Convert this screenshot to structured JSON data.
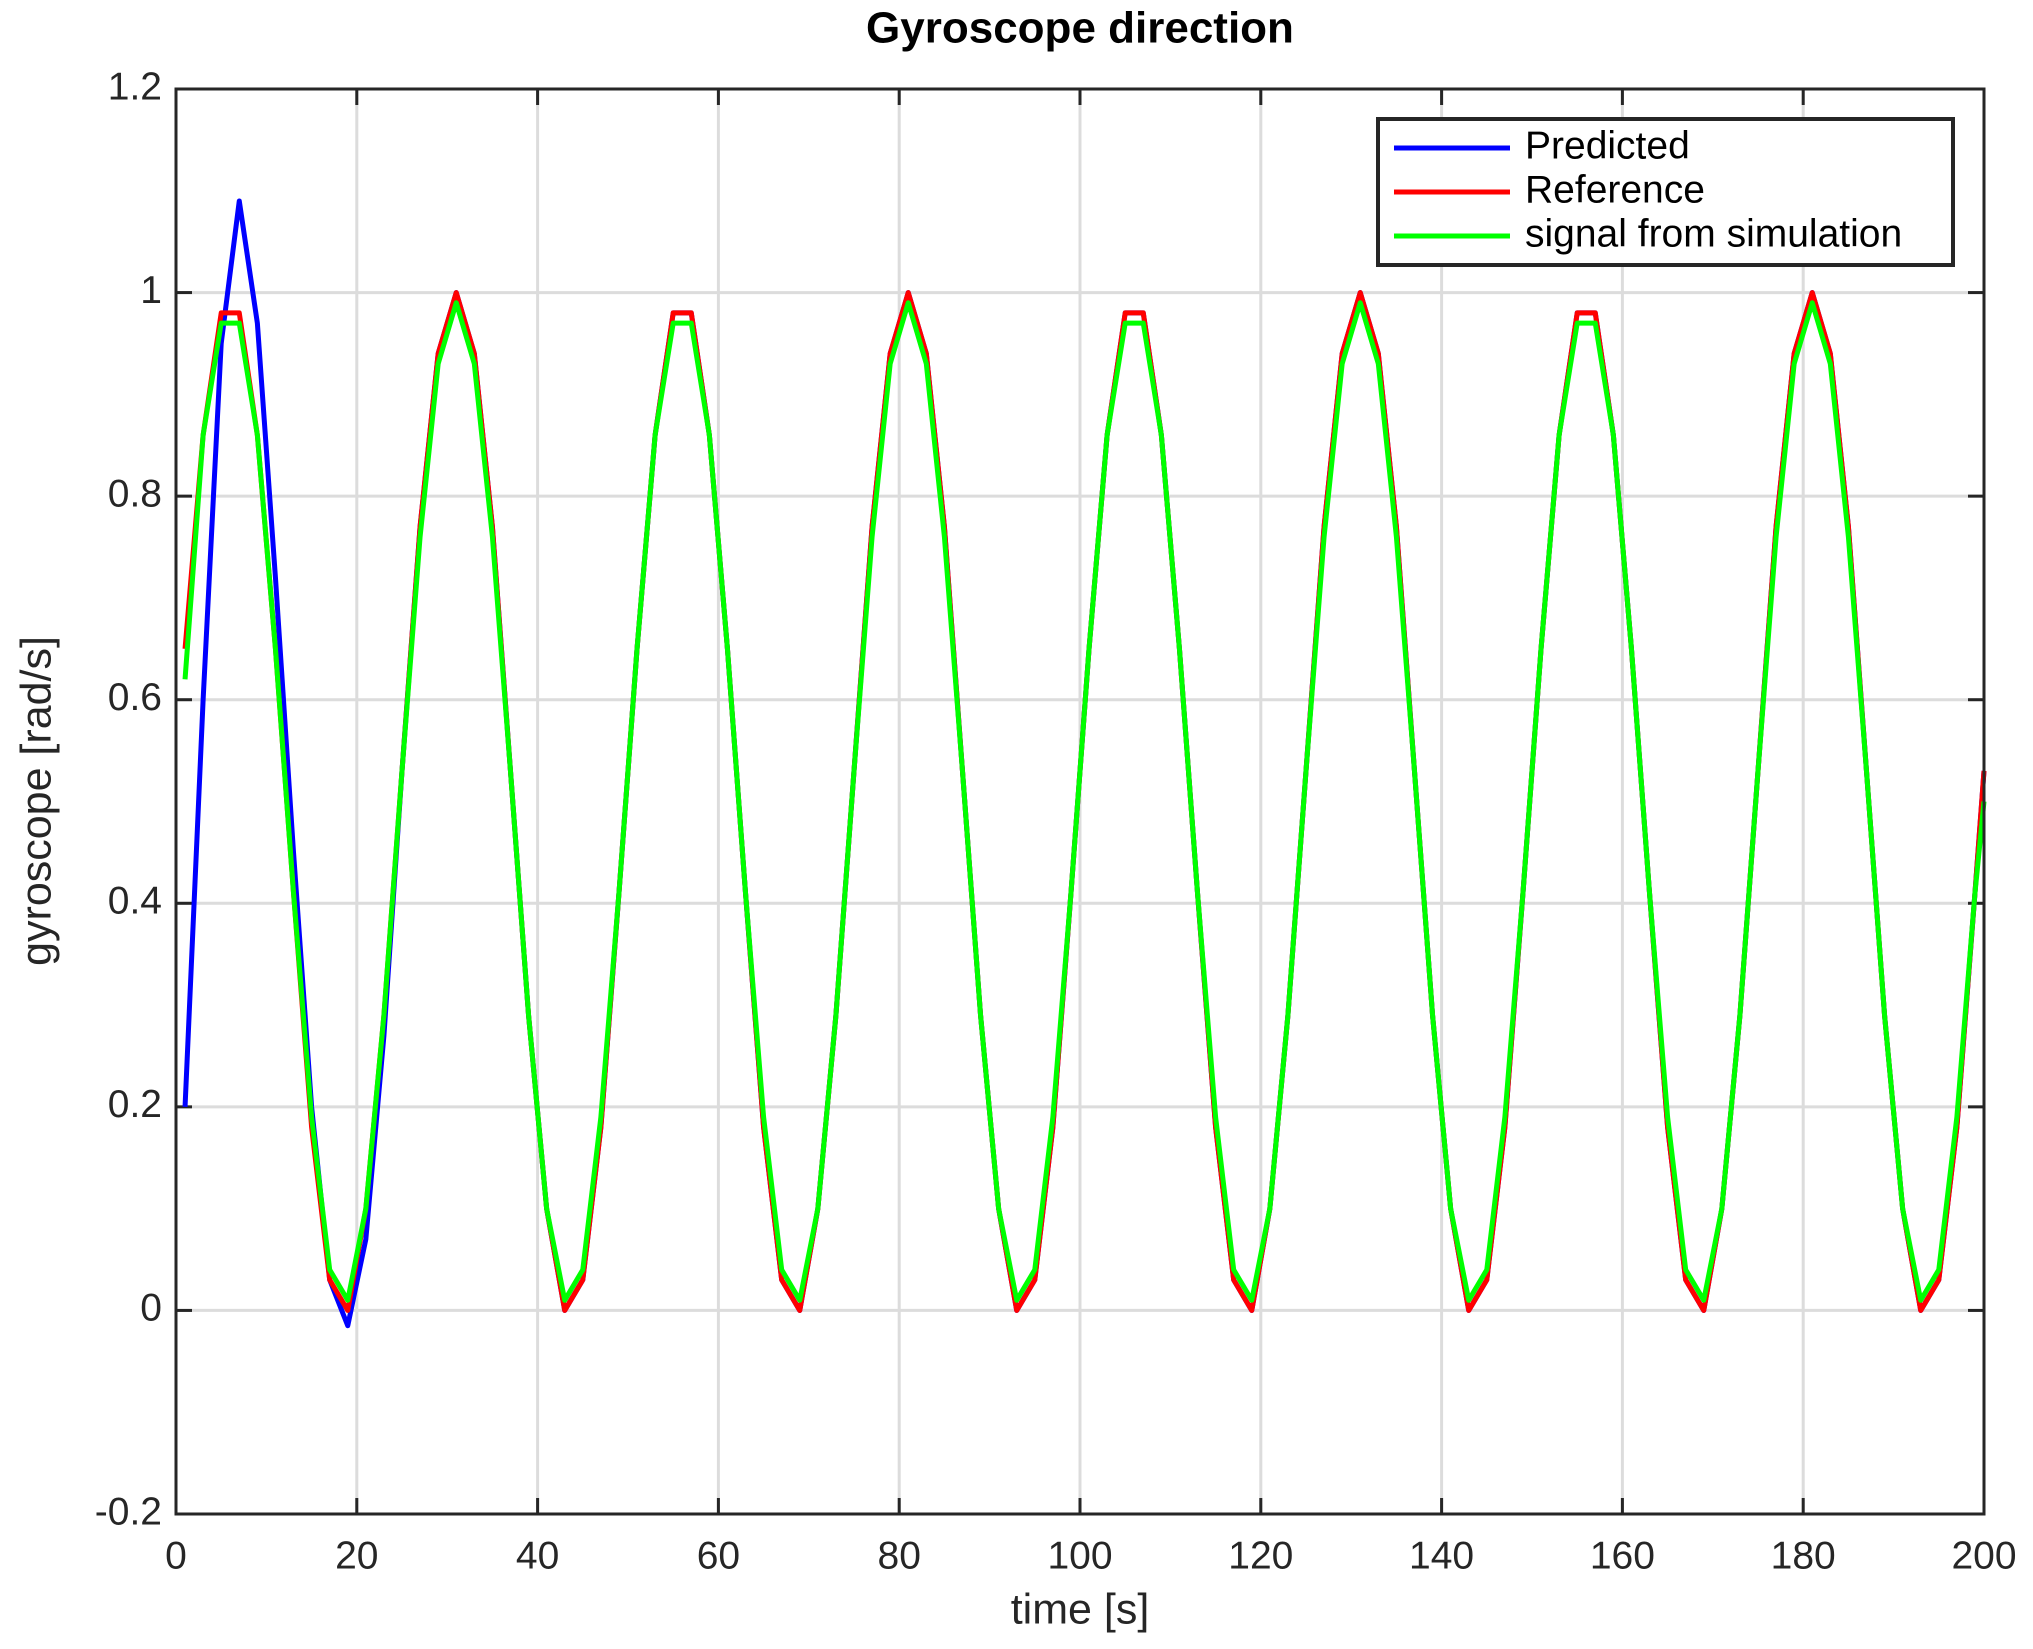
{
  "chart_data": {
    "type": "line",
    "title": "Gyroscope  direction",
    "xlabel": "time [s]",
    "ylabel": "gyroscope [rad/s]",
    "x": [
      1,
      3,
      5,
      7,
      9,
      11,
      13,
      15,
      17,
      19,
      21,
      23,
      25,
      27,
      29,
      31,
      33,
      35,
      37,
      39,
      41,
      43,
      45,
      47,
      49,
      51,
      53,
      55,
      57,
      59,
      61,
      63,
      65,
      67,
      69,
      71,
      73,
      75,
      77,
      79,
      81,
      83,
      85,
      87,
      89,
      91,
      93,
      95,
      97,
      99,
      101,
      103,
      105,
      107,
      109,
      111,
      113,
      115,
      117,
      119,
      121,
      123,
      125,
      127,
      129,
      131,
      133,
      135,
      137,
      139,
      141,
      143,
      145,
      147,
      149,
      151,
      153,
      155,
      157,
      159,
      161,
      163,
      165,
      167,
      169,
      171,
      173,
      175,
      177,
      179,
      181,
      183,
      185,
      187,
      189,
      191,
      193,
      195,
      197,
      199,
      200
    ],
    "series": [
      {
        "name": "Predicted",
        "color": "#0000ff",
        "values": [
          0.2,
          0.6,
          0.95,
          1.09,
          0.97,
          0.72,
          0.45,
          0.2,
          0.03,
          -0.015,
          0.07,
          0.27,
          0.53,
          0.77,
          0.94,
          1,
          0.94,
          0.77,
          0.53,
          0.29,
          0.1,
          0,
          0.03,
          0.18,
          0.41,
          0.65,
          0.86,
          0.98,
          0.98,
          0.86,
          0.65,
          0.41,
          0.18,
          0.03,
          0,
          0.1,
          0.29,
          0.53,
          0.77,
          0.94,
          1,
          0.94,
          0.77,
          0.53,
          0.29,
          0.1,
          0,
          0.03,
          0.18,
          0.41,
          0.65,
          0.86,
          0.98,
          0.98,
          0.86,
          0.65,
          0.41,
          0.18,
          0.03,
          0,
          0.1,
          0.29,
          0.53,
          0.77,
          0.94,
          1,
          0.94,
          0.77,
          0.53,
          0.29,
          0.1,
          0,
          0.03,
          0.18,
          0.41,
          0.65,
          0.86,
          0.98,
          0.98,
          0.86,
          0.65,
          0.41,
          0.18,
          0.03,
          0,
          0.1,
          0.29,
          0.53,
          0.77,
          0.94,
          1,
          0.94,
          0.77,
          0.53,
          0.29,
          0.1,
          0,
          0.03,
          0.18,
          0.41,
          0.53
        ]
      },
      {
        "name": "Reference",
        "color": "#ff0000",
        "values": [
          0.65,
          0.86,
          0.98,
          0.98,
          0.86,
          0.65,
          0.41,
          0.18,
          0.03,
          0,
          0.1,
          0.29,
          0.53,
          0.77,
          0.94,
          1,
          0.94,
          0.77,
          0.53,
          0.29,
          0.1,
          0,
          0.03,
          0.18,
          0.41,
          0.65,
          0.86,
          0.98,
          0.98,
          0.86,
          0.65,
          0.41,
          0.18,
          0.03,
          0,
          0.1,
          0.29,
          0.53,
          0.77,
          0.94,
          1,
          0.94,
          0.77,
          0.53,
          0.29,
          0.1,
          0,
          0.03,
          0.18,
          0.41,
          0.65,
          0.86,
          0.98,
          0.98,
          0.86,
          0.65,
          0.41,
          0.18,
          0.03,
          0,
          0.1,
          0.29,
          0.53,
          0.77,
          0.94,
          1,
          0.94,
          0.77,
          0.53,
          0.29,
          0.1,
          0,
          0.03,
          0.18,
          0.41,
          0.65,
          0.86,
          0.98,
          0.98,
          0.86,
          0.65,
          0.41,
          0.18,
          0.03,
          0,
          0.1,
          0.29,
          0.53,
          0.77,
          0.94,
          1,
          0.94,
          0.77,
          0.53,
          0.29,
          0.1,
          0,
          0.03,
          0.18,
          0.41,
          0.53
        ]
      },
      {
        "name": "signal from simulation",
        "color": "#00ff00",
        "values": [
          0.62,
          0.86,
          0.97,
          0.97,
          0.86,
          0.65,
          0.41,
          0.19,
          0.04,
          0.01,
          0.1,
          0.29,
          0.53,
          0.76,
          0.93,
          0.99,
          0.93,
          0.76,
          0.53,
          0.29,
          0.1,
          0.01,
          0.04,
          0.19,
          0.41,
          0.65,
          0.86,
          0.97,
          0.97,
          0.86,
          0.65,
          0.41,
          0.19,
          0.04,
          0.01,
          0.1,
          0.29,
          0.53,
          0.76,
          0.93,
          0.99,
          0.93,
          0.76,
          0.53,
          0.29,
          0.1,
          0.01,
          0.04,
          0.19,
          0.41,
          0.65,
          0.86,
          0.97,
          0.97,
          0.86,
          0.65,
          0.41,
          0.19,
          0.04,
          0.01,
          0.1,
          0.29,
          0.53,
          0.76,
          0.93,
          0.99,
          0.93,
          0.76,
          0.53,
          0.29,
          0.1,
          0.01,
          0.04,
          0.19,
          0.41,
          0.65,
          0.86,
          0.97,
          0.97,
          0.86,
          0.65,
          0.41,
          0.19,
          0.04,
          0.01,
          0.1,
          0.29,
          0.53,
          0.76,
          0.93,
          0.99,
          0.93,
          0.76,
          0.53,
          0.29,
          0.1,
          0.01,
          0.04,
          0.19,
          0.41,
          0.5
        ]
      }
    ],
    "xlim": [
      0,
      200
    ],
    "xticks": [
      0,
      20,
      40,
      60,
      80,
      100,
      120,
      140,
      160,
      180,
      200
    ],
    "ylim": [
      -0.2,
      1.2
    ],
    "yticks": [
      -0.2,
      0,
      0.2,
      0.4,
      0.6,
      0.8,
      1,
      1.2
    ],
    "grid": true,
    "legend": "upper right"
  }
}
